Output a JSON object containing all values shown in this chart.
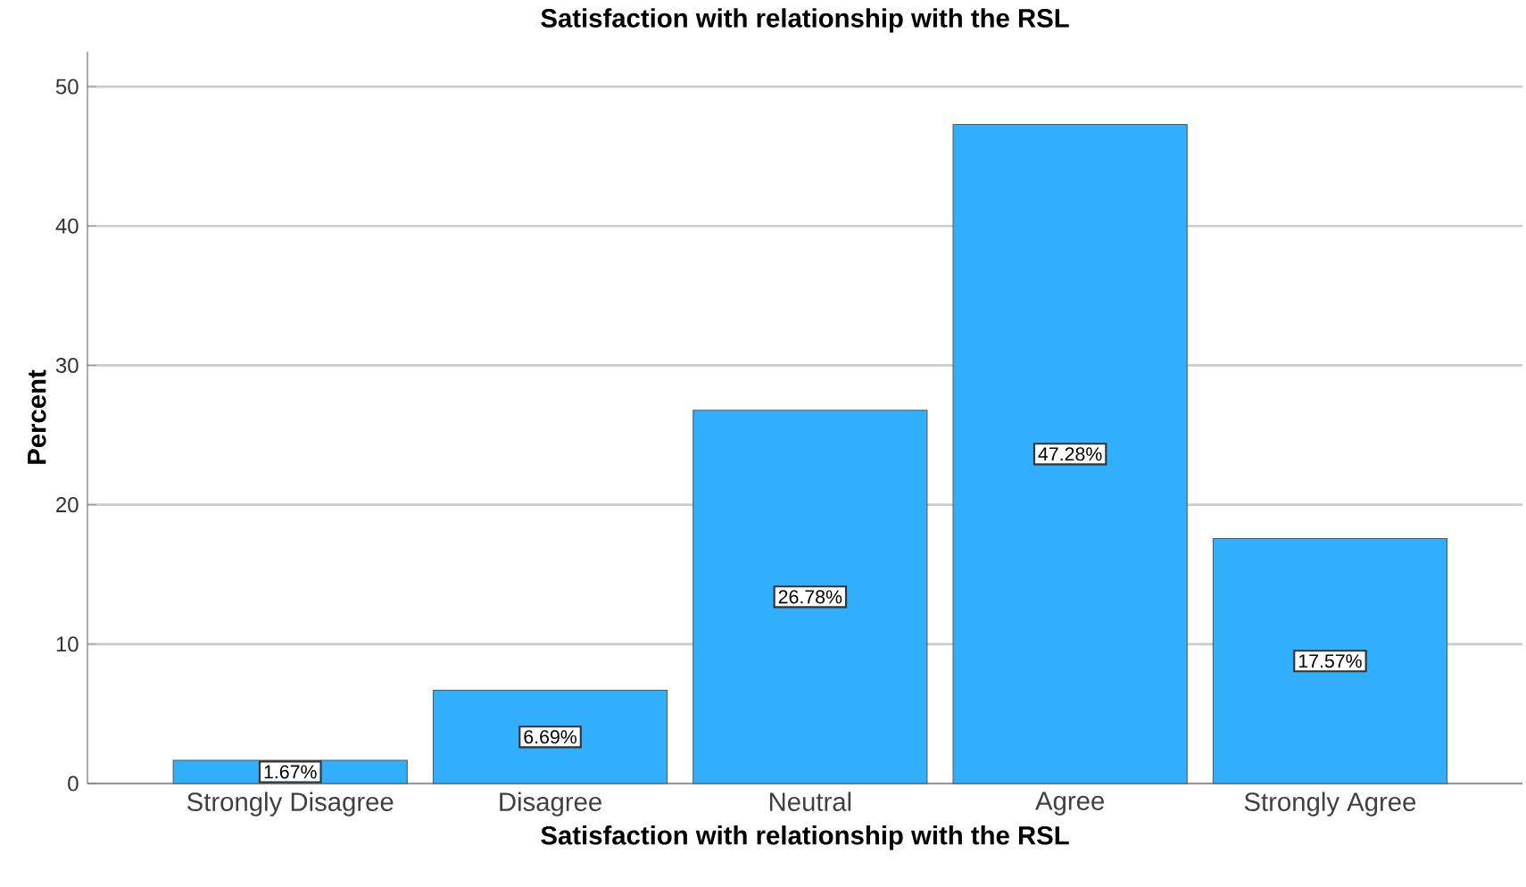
{
  "chart_data": {
    "type": "bar",
    "title": "Satisfaction with relationship with the RSL",
    "xlabel": "Satisfaction with relationship with the RSL",
    "ylabel": "Percent",
    "categories": [
      "Strongly Disagree",
      "Disagree",
      "Neutral",
      "Agree",
      "Strongly Agree"
    ],
    "values": [
      1.67,
      6.69,
      26.78,
      47.28,
      17.57
    ],
    "value_labels": [
      "1.67%",
      "6.69%",
      "26.78%",
      "47.28%",
      "17.57%"
    ],
    "color": "#31aefc",
    "ylim": [
      0,
      52.5
    ],
    "yticks": [
      0,
      10,
      20,
      30,
      40,
      50
    ],
    "grid": "y"
  }
}
